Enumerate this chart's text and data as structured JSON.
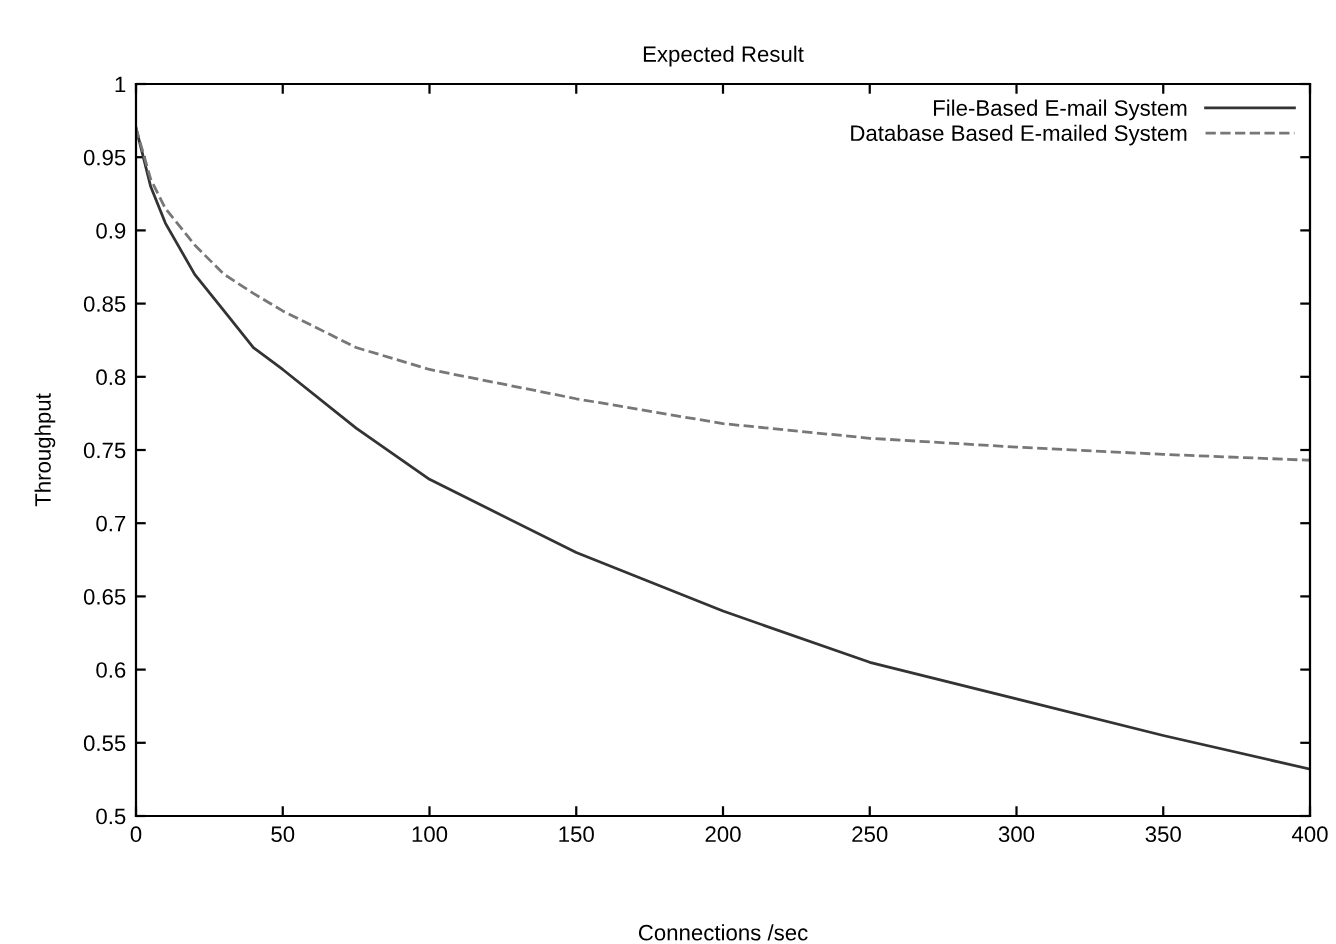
{
  "chart_data": {
    "type": "line",
    "title": "Expected Result",
    "xlabel": "Connections /sec",
    "ylabel": "Throughput",
    "xlim": [
      0,
      400
    ],
    "xticks": [
      0,
      50,
      100,
      150,
      200,
      250,
      300,
      350,
      400
    ],
    "ylim": [
      0.5,
      1
    ],
    "yticks": [
      0.5,
      0.55,
      0.6,
      0.65,
      0.7,
      0.75,
      0.8,
      0.85,
      0.9,
      0.95,
      1
    ],
    "x": [
      0,
      5,
      10,
      20,
      30,
      40,
      50,
      75,
      100,
      150,
      200,
      250,
      300,
      350,
      400
    ],
    "series": [
      {
        "name": "File-Based E-mail System",
        "color": "#333333",
        "line_style": "solid",
        "values": [
          0.97,
          0.93,
          0.905,
          0.87,
          0.845,
          0.82,
          0.805,
          0.765,
          0.73,
          0.68,
          0.64,
          0.605,
          0.58,
          0.555,
          0.532
        ]
      },
      {
        "name": "Database Based E-mailed System",
        "color": "#777777",
        "line_style": "dashed",
        "values": [
          0.97,
          0.935,
          0.915,
          0.89,
          0.87,
          0.857,
          0.845,
          0.82,
          0.805,
          0.785,
          0.768,
          0.758,
          0.752,
          0.747,
          0.743
        ]
      }
    ],
    "legend": "top right",
    "grid": false,
    "marker": "none"
  }
}
